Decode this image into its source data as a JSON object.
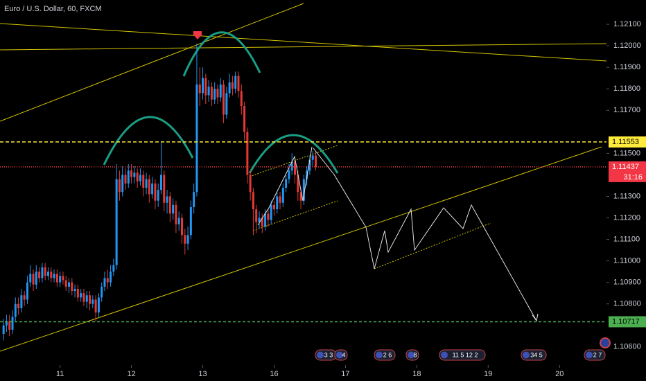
{
  "chart_data": {
    "type": "candlestick",
    "title": "Euro / U.S. Dollar, 60, FXCM",
    "up_color": "#2196f3",
    "down_color": "#e53935",
    "x": [
      0,
      1,
      2,
      3,
      4,
      5,
      6,
      7,
      8,
      9,
      10,
      11,
      12,
      13,
      14,
      15,
      16,
      17,
      18,
      19,
      20,
      21,
      22,
      23,
      24,
      25,
      26,
      27,
      28,
      29,
      30,
      31,
      32,
      33,
      34,
      35,
      36,
      37,
      38,
      39,
      40,
      41,
      42,
      43,
      44,
      45,
      46,
      47,
      48,
      49,
      50,
      51,
      52,
      53,
      54,
      55,
      56,
      57,
      58,
      59,
      60,
      61,
      62,
      63,
      64,
      65,
      66,
      67,
      68,
      69,
      70,
      71,
      72,
      73,
      74,
      75,
      76,
      77,
      78,
      79,
      80,
      81,
      82,
      83,
      84,
      85,
      86,
      87,
      88,
      89,
      90,
      91,
      92,
      93,
      94,
      95,
      96,
      97,
      98,
      99,
      100,
      101,
      102,
      103,
      104,
      105
    ],
    "candles": [
      [
        1.1066,
        1.1073,
        1.1063,
        1.107
      ],
      [
        1.107,
        1.1075,
        1.1067,
        1.1072
      ],
      [
        1.1072,
        1.1075,
        1.1065,
        1.1068
      ],
      [
        1.1068,
        1.1077,
        1.1066,
        1.1074
      ],
      [
        1.1074,
        1.1083,
        1.1072,
        1.108
      ],
      [
        1.108,
        1.1083,
        1.1075,
        1.1078
      ],
      [
        1.1078,
        1.1087,
        1.1076,
        1.1084
      ],
      [
        1.1084,
        1.1086,
        1.1079,
        1.1082
      ],
      [
        1.1082,
        1.1093,
        1.108,
        1.109
      ],
      [
        1.109,
        1.1098,
        1.1088,
        1.1094
      ],
      [
        1.1094,
        1.1096,
        1.1086,
        1.1089
      ],
      [
        1.1089,
        1.1098,
        1.1087,
        1.1095
      ],
      [
        1.1095,
        1.1097,
        1.109,
        1.1092
      ],
      [
        1.1092,
        1.1099,
        1.109,
        1.1097
      ],
      [
        1.1097,
        1.1099,
        1.1091,
        1.1093
      ],
      [
        1.1093,
        1.1097,
        1.1091,
        1.1095
      ],
      [
        1.1095,
        1.1097,
        1.109,
        1.1092
      ],
      [
        1.1092,
        1.1096,
        1.109,
        1.1094
      ],
      [
        1.1094,
        1.1096,
        1.1088,
        1.109
      ],
      [
        1.109,
        1.1095,
        1.1088,
        1.1093
      ],
      [
        1.1093,
        1.1095,
        1.1089,
        1.1091
      ],
      [
        1.1091,
        1.1093,
        1.1086,
        1.1088
      ],
      [
        1.1088,
        1.1092,
        1.1085,
        1.109
      ],
      [
        1.109,
        1.1092,
        1.1084,
        1.1086
      ],
      [
        1.1086,
        1.1089,
        1.1083,
        1.1087
      ],
      [
        1.1087,
        1.1089,
        1.1081,
        1.1083
      ],
      [
        1.1083,
        1.1087,
        1.1081,
        1.1085
      ],
      [
        1.1085,
        1.1087,
        1.1079,
        1.1081
      ],
      [
        1.1081,
        1.1086,
        1.1078,
        1.1084
      ],
      [
        1.1084,
        1.1086,
        1.1077,
        1.108
      ],
      [
        1.108,
        1.1084,
        1.1078,
        1.1082
      ],
      [
        1.1082,
        1.1084,
        1.10717,
        1.1076
      ],
      [
        1.1076,
        1.1085,
        1.1074,
        1.1083
      ],
      [
        1.1083,
        1.109,
        1.1081,
        1.1088
      ],
      [
        1.1088,
        1.1095,
        1.1086,
        1.1092
      ],
      [
        1.1092,
        1.1096,
        1.1087,
        1.109
      ],
      [
        1.109,
        1.1098,
        1.1088,
        1.1095
      ],
      [
        1.1095,
        1.1101,
        1.1093,
        1.1098
      ],
      [
        1.1098,
        1.1145,
        1.1096,
        1.1138
      ],
      [
        1.1138,
        1.1142,
        1.1128,
        1.1132
      ],
      [
        1.1132,
        1.1144,
        1.113,
        1.114
      ],
      [
        1.114,
        1.1143,
        1.1133,
        1.1136
      ],
      [
        1.1136,
        1.1145,
        1.1134,
        1.1142
      ],
      [
        1.1142,
        1.1145,
        1.1136,
        1.1139
      ],
      [
        1.1139,
        1.1144,
        1.1136,
        1.1141
      ],
      [
        1.1141,
        1.1143,
        1.1134,
        1.1137
      ],
      [
        1.1137,
        1.1143,
        1.1135,
        1.114
      ],
      [
        1.114,
        1.1142,
        1.113,
        1.1134
      ],
      [
        1.1134,
        1.1141,
        1.1131,
        1.1138
      ],
      [
        1.1138,
        1.114,
        1.1127,
        1.1131
      ],
      [
        1.1131,
        1.1139,
        1.1129,
        1.1136
      ],
      [
        1.1136,
        1.1138,
        1.1124,
        1.1128
      ],
      [
        1.1128,
        1.1136,
        1.1125,
        1.1133
      ],
      [
        1.1133,
        1.1155,
        1.1131,
        1.114
      ],
      [
        1.114,
        1.1142,
        1.1123,
        1.1127
      ],
      [
        1.1127,
        1.1133,
        1.1122,
        1.113
      ],
      [
        1.113,
        1.1132,
        1.1118,
        1.1122
      ],
      [
        1.1122,
        1.1129,
        1.1119,
        1.1126
      ],
      [
        1.1126,
        1.1128,
        1.1113,
        1.1117
      ],
      [
        1.1117,
        1.1123,
        1.1114,
        1.112
      ],
      [
        1.112,
        1.1122,
        1.1108,
        1.1112
      ],
      [
        1.1112,
        1.1115,
        1.1103,
        1.1108
      ],
      [
        1.1108,
        1.1116,
        1.1105,
        1.1112
      ],
      [
        1.1112,
        1.1128,
        1.111,
        1.1125
      ],
      [
        1.1125,
        1.1136,
        1.1122,
        1.1132
      ],
      [
        1.1132,
        1.1201,
        1.113,
        1.1182
      ],
      [
        1.1182,
        1.119,
        1.1172,
        1.1178
      ],
      [
        1.1178,
        1.119,
        1.1175,
        1.1185
      ],
      [
        1.1185,
        1.1187,
        1.1173,
        1.1177
      ],
      [
        1.1177,
        1.1184,
        1.1174,
        1.1181
      ],
      [
        1.1181,
        1.1183,
        1.1172,
        1.1175
      ],
      [
        1.1175,
        1.1183,
        1.1173,
        1.118
      ],
      [
        1.118,
        1.1182,
        1.1173,
        1.1176
      ],
      [
        1.1176,
        1.1185,
        1.1174,
        1.1182
      ],
      [
        1.1182,
        1.1184,
        1.1164,
        1.1168
      ],
      [
        1.1168,
        1.1181,
        1.1166,
        1.1178
      ],
      [
        1.1178,
        1.1187,
        1.1176,
        1.1183
      ],
      [
        1.1183,
        1.1186,
        1.1177,
        1.118
      ],
      [
        1.118,
        1.1188,
        1.1178,
        1.1186
      ],
      [
        1.1186,
        1.1188,
        1.1176,
        1.1179
      ],
      [
        1.1179,
        1.1182,
        1.1168,
        1.1172
      ],
      [
        1.1172,
        1.1174,
        1.1156,
        1.116
      ],
      [
        1.116,
        1.1162,
        1.1136,
        1.114
      ],
      [
        1.114,
        1.1142,
        1.1128,
        1.1132
      ],
      [
        1.1132,
        1.1134,
        1.1112,
        1.1124
      ],
      [
        1.1124,
        1.1126,
        1.1113,
        1.1118
      ],
      [
        1.1118,
        1.1123,
        1.1115,
        1.112
      ],
      [
        1.112,
        1.1122,
        1.1113,
        1.1116
      ],
      [
        1.1116,
        1.1124,
        1.1114,
        1.1122
      ],
      [
        1.1122,
        1.1124,
        1.1116,
        1.1119
      ],
      [
        1.1119,
        1.1128,
        1.1117,
        1.1126
      ],
      [
        1.1126,
        1.1128,
        1.1121,
        1.1124
      ],
      [
        1.1124,
        1.1132,
        1.1122,
        1.113
      ],
      [
        1.113,
        1.1132,
        1.1124,
        1.1127
      ],
      [
        1.1127,
        1.1136,
        1.1125,
        1.1134
      ],
      [
        1.1134,
        1.114,
        1.1132,
        1.1138
      ],
      [
        1.1138,
        1.1145,
        1.1136,
        1.1142
      ],
      [
        1.1142,
        1.115,
        1.114,
        1.1146
      ],
      [
        1.1146,
        1.1148,
        1.1136,
        1.114
      ],
      [
        1.114,
        1.1142,
        1.1128,
        1.1132
      ],
      [
        1.1132,
        1.1134,
        1.1124,
        1.1128
      ],
      [
        1.1128,
        1.114,
        1.1126,
        1.1138
      ],
      [
        1.1138,
        1.1144,
        1.1135,
        1.1142
      ],
      [
        1.1142,
        1.1149,
        1.114,
        1.1147
      ],
      [
        1.1147,
        1.1151,
        1.1144,
        1.1149
      ],
      [
        1.1149,
        1.1151,
        1.1142,
        1.11437
      ]
    ],
    "xlim": [
      -1.2,
      202.8
    ],
    "xticks": [
      {
        "value": 19,
        "label": "11"
      },
      {
        "value": 43,
        "label": "12"
      },
      {
        "value": 67,
        "label": "13"
      },
      {
        "value": 91,
        "label": "16"
      },
      {
        "value": 115,
        "label": "17"
      },
      {
        "value": 139,
        "label": "18"
      },
      {
        "value": 163,
        "label": "19"
      },
      {
        "value": 187,
        "label": "20"
      }
    ],
    "ylim": [
      1.10522,
      1.12213
    ],
    "yticks": [
      {
        "value": 1.121,
        "label": "1.12100"
      },
      {
        "value": 1.12,
        "label": "1.12000"
      },
      {
        "value": 1.119,
        "label": "1.11900"
      },
      {
        "value": 1.118,
        "label": "1.11800"
      },
      {
        "value": 1.117,
        "label": "1.11700"
      },
      {
        "value": 1.115,
        "label": "1.11500"
      },
      {
        "value": 1.113,
        "label": "1.11300"
      },
      {
        "value": 1.112,
        "label": "1.11200"
      },
      {
        "value": 1.111,
        "label": "1.11100"
      },
      {
        "value": 1.11,
        "label": "1.11000"
      },
      {
        "value": 1.109,
        "label": "1.10900"
      },
      {
        "value": 1.108,
        "label": "1.10800"
      },
      {
        "value": 1.106,
        "label": "1.10600"
      }
    ],
    "price_lines": [
      {
        "value": 1.11553,
        "color": "#ffeb3b",
        "text_color": "#000000",
        "dash": "5 3"
      },
      {
        "value": 1.11437,
        "color": "#f23645",
        "text_color": "#ffffff",
        "dash": "1 2"
      },
      {
        "value": 1.10717,
        "color": "#4caf50",
        "text_color": "#000000",
        "dash": "4 3"
      }
    ],
    "countdown": "31:16",
    "events": [
      "3 3",
      "4",
      "2 6",
      "8",
      "11 5 12 2",
      "34 5",
      "2 7"
    ]
  }
}
